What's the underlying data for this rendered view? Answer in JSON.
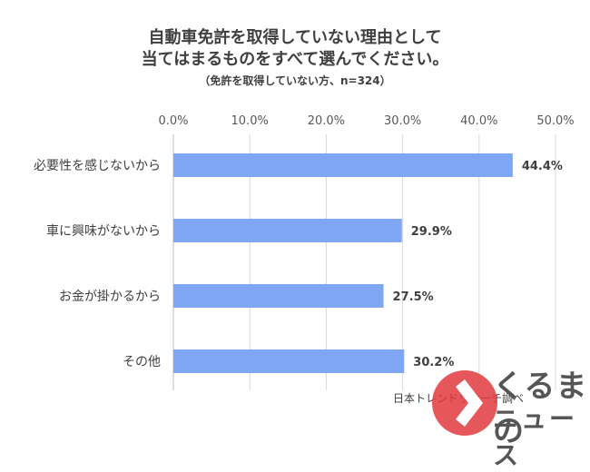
{
  "header": {
    "title_line1": "自動車免許を取得していない理由として",
    "title_line2": "当てはまるものをすべて選んでください。",
    "subtitle": "（免許を取得していない方、n=324）"
  },
  "chart_data": {
    "type": "bar",
    "orientation": "horizontal",
    "categories": [
      "必要性を感じないから",
      "車に興味がないから",
      "お金が掛かるから",
      "その他"
    ],
    "values": [
      44.4,
      29.9,
      27.5,
      30.2
    ],
    "value_labels": [
      "44.4%",
      "29.9%",
      "27.5%",
      "30.2%"
    ],
    "xlim": [
      0,
      50
    ],
    "ticks": [
      0,
      10,
      20,
      30,
      40,
      50
    ],
    "tick_labels": [
      "0.0%",
      "10.0%",
      "20.0%",
      "30.0%",
      "40.0%",
      "50.0%"
    ],
    "grid": true,
    "bar_color": "#7ea6f2",
    "grid_color": "#d9d9d9"
  },
  "source": "日本トレンドリサーチ調べ",
  "logo": {
    "line1": "くるまの",
    "line2": "ニュース",
    "accent_color": "#d9202a"
  }
}
